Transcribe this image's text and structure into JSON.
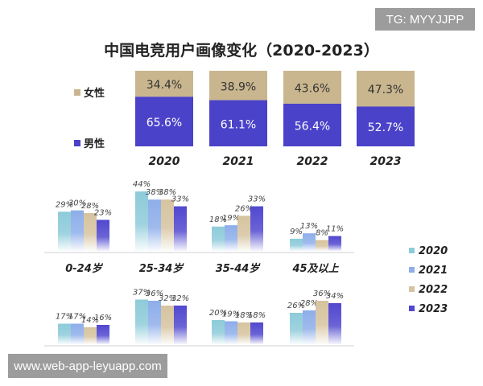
{
  "watermarks": {
    "top": "TG: MYYJJPP",
    "bottom": "www.web-app-leyuapp.com"
  },
  "chart_data": [
    {
      "type": "bar",
      "stacked": true,
      "title": "中国电竞用户画像变化（2020-2023）",
      "categories": [
        "2020",
        "2021",
        "2022",
        "2023"
      ],
      "series": [
        {
          "name": "女性",
          "values": [
            34.4,
            38.9,
            43.6,
            47.3
          ],
          "labels": [
            "34.4%",
            "38.9%",
            "43.6%",
            "47.3%"
          ],
          "color": "#c9b68e"
        },
        {
          "name": "男性",
          "values": [
            65.6,
            61.1,
            56.4,
            52.7
          ],
          "labels": [
            "65.6%",
            "61.1%",
            "56.4%",
            "52.7%"
          ],
          "color": "#4a42c8"
        }
      ],
      "legend": "left"
    },
    {
      "type": "bar",
      "categories": [
        "0-24岁",
        "25-34岁",
        "35-44岁",
        "45及以上"
      ],
      "series": [
        {
          "name": "2020",
          "values": [
            29,
            44,
            18,
            9
          ],
          "color": "#8dcbd9"
        },
        {
          "name": "2021",
          "values": [
            30,
            38,
            19,
            13
          ],
          "color": "#8eaeea"
        },
        {
          "name": "2022",
          "values": [
            28,
            38,
            26,
            8
          ],
          "color": "#d6c39f"
        },
        {
          "name": "2023",
          "values": [
            23,
            33,
            33,
            11
          ],
          "color": "#5148cf"
        }
      ],
      "legend": "right",
      "data_labels": true
    },
    {
      "type": "bar",
      "series": [
        {
          "name": "2020",
          "values": [
            17,
            37,
            20,
            26
          ],
          "color": "#8dcbd9"
        },
        {
          "name": "2021",
          "values": [
            17,
            36,
            19,
            28
          ],
          "color": "#8eaeea"
        },
        {
          "name": "2022",
          "values": [
            14,
            32,
            18,
            36
          ],
          "color": "#d6c39f"
        },
        {
          "name": "2023",
          "values": [
            16,
            32,
            18,
            34
          ],
          "color": "#5148cf"
        }
      ],
      "data_labels": true
    }
  ]
}
